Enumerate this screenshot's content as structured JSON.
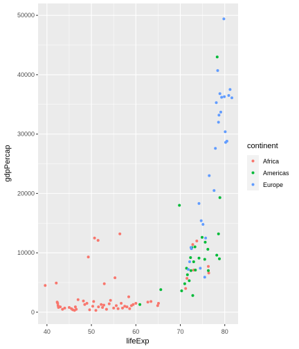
{
  "chart_data": {
    "type": "scatter",
    "xlabel": "lifeExp",
    "ylabel": "gdpPercap",
    "xlim": [
      38,
      83
    ],
    "ylim": [
      -2000,
      52000
    ],
    "x_ticks": [
      40,
      50,
      60,
      70,
      80
    ],
    "y_ticks": [
      0,
      10000,
      20000,
      30000,
      40000,
      50000
    ],
    "grid": true,
    "legend": {
      "title": "continent",
      "placement": "right"
    },
    "series": [
      {
        "name": "Africa",
        "color": "#F8766D",
        "points": [
          [
            39.6,
            4500
          ],
          [
            42.1,
            4900
          ],
          [
            42.3,
            1700
          ],
          [
            42.4,
            1500
          ],
          [
            42.5,
            1100
          ],
          [
            42.6,
            800
          ],
          [
            43.0,
            900
          ],
          [
            43.5,
            500
          ],
          [
            44.0,
            700
          ],
          [
            45.0,
            800
          ],
          [
            45.5,
            600
          ],
          [
            45.8,
            400
          ],
          [
            46.2,
            300
          ],
          [
            46.4,
            900
          ],
          [
            46.6,
            500
          ],
          [
            47.0,
            2100
          ],
          [
            48.2,
            1900
          ],
          [
            48.5,
            1300
          ],
          [
            49.0,
            1500
          ],
          [
            49.3,
            9300
          ],
          [
            49.6,
            400
          ],
          [
            50.3,
            1000
          ],
          [
            50.5,
            1800
          ],
          [
            50.7,
            12500
          ],
          [
            51.0,
            300
          ],
          [
            51.5,
            12100
          ],
          [
            51.6,
            900
          ],
          [
            52.2,
            1300
          ],
          [
            52.5,
            800
          ],
          [
            52.8,
            1200
          ],
          [
            52.9,
            4800
          ],
          [
            53.4,
            500
          ],
          [
            54.0,
            1400
          ],
          [
            54.3,
            2000
          ],
          [
            55.0,
            700
          ],
          [
            55.3,
            5800
          ],
          [
            55.6,
            1100
          ],
          [
            56.0,
            600
          ],
          [
            56.4,
            13200
          ],
          [
            56.7,
            1500
          ],
          [
            57.0,
            700
          ],
          [
            57.5,
            1000
          ],
          [
            58.0,
            900
          ],
          [
            58.4,
            2600
          ],
          [
            58.6,
            600
          ],
          [
            59.0,
            1100
          ],
          [
            59.4,
            1300
          ],
          [
            60.0,
            1500
          ],
          [
            62.7,
            1700
          ],
          [
            63.4,
            1800
          ],
          [
            64.9,
            1100
          ],
          [
            65.1,
            1500
          ],
          [
            71.2,
            4000
          ],
          [
            71.5,
            5700
          ],
          [
            72.8,
            11400
          ],
          [
            73.0,
            7100
          ],
          [
            73.7,
            12000
          ],
          [
            76.3,
            7700
          ],
          [
            76.4,
            6600
          ]
        ]
      },
      {
        "name": "Americas",
        "color": "#00BA38",
        "points": [
          [
            60.9,
            1300
          ],
          [
            65.6,
            3800
          ],
          [
            69.8,
            18000
          ],
          [
            70.3,
            3600
          ],
          [
            71.0,
            4800
          ],
          [
            71.4,
            7400
          ],
          [
            71.6,
            6300
          ],
          [
            72.0,
            5300
          ],
          [
            72.3,
            9200
          ],
          [
            72.4,
            7000
          ],
          [
            72.6,
            10900
          ],
          [
            72.8,
            2800
          ],
          [
            73.0,
            8500
          ],
          [
            73.3,
            11000
          ],
          [
            73.4,
            7100
          ],
          [
            74.2,
            9100
          ],
          [
            74.9,
            12600
          ],
          [
            75.5,
            8900
          ],
          [
            75.6,
            11800
          ],
          [
            76.2,
            10600
          ],
          [
            76.3,
            7000
          ],
          [
            78.2,
            9600
          ],
          [
            78.3,
            43000
          ],
          [
            78.6,
            13200
          ],
          [
            78.8,
            9000
          ],
          [
            78.9,
            19300
          ]
        ]
      },
      {
        "name": "Europe",
        "color": "#619CFF",
        "points": [
          [
            71.8,
            7200
          ],
          [
            72.1,
            8500
          ],
          [
            72.4,
            10900
          ],
          [
            72.5,
            10700
          ],
          [
            74.2,
            18300
          ],
          [
            74.5,
            7400
          ],
          [
            74.7,
            15400
          ],
          [
            75.1,
            14800
          ],
          [
            75.5,
            5900
          ],
          [
            75.7,
            12500
          ],
          [
            76.5,
            23000
          ],
          [
            77.6,
            20500
          ],
          [
            77.9,
            27600
          ],
          [
            78.1,
            35300
          ],
          [
            78.4,
            40700
          ],
          [
            78.6,
            32000
          ],
          [
            78.7,
            33200
          ],
          [
            78.9,
            36800
          ],
          [
            79.1,
            33700
          ],
          [
            79.3,
            36200
          ],
          [
            79.8,
            49400
          ],
          [
            79.9,
            36300
          ],
          [
            80.1,
            30400
          ],
          [
            80.2,
            28600
          ],
          [
            80.5,
            28800
          ],
          [
            80.9,
            36500
          ],
          [
            81.2,
            37500
          ],
          [
            81.6,
            36100
          ]
        ]
      }
    ]
  }
}
